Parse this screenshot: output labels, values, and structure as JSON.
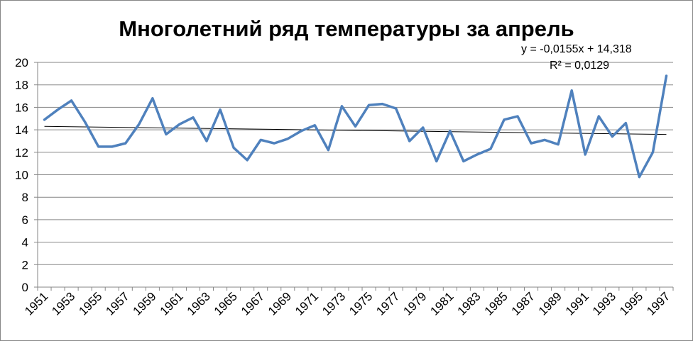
{
  "chart_data": {
    "type": "line",
    "title": "Многолетний ряд температуры за апрель",
    "xlabel": "",
    "ylabel": "",
    "ylim": [
      0,
      20
    ],
    "y_ticks": [
      "0",
      "2",
      "4",
      "6",
      "8",
      "10",
      "12",
      "14",
      "16",
      "18",
      "20"
    ],
    "x_tick_labels": [
      "1951",
      "1953",
      "1955",
      "1957",
      "1959",
      "1961",
      "1963",
      "1965",
      "1967",
      "1969",
      "1971",
      "1973",
      "1975",
      "1977",
      "1979",
      "1981",
      "1983",
      "1985",
      "1987",
      "1989",
      "1991",
      "1993",
      "1995",
      "1997"
    ],
    "grid": "horizontal",
    "legend": "none",
    "x": [
      1951,
      1952,
      1953,
      1954,
      1955,
      1956,
      1957,
      1958,
      1959,
      1960,
      1961,
      1962,
      1963,
      1964,
      1965,
      1966,
      1967,
      1968,
      1969,
      1970,
      1971,
      1972,
      1973,
      1974,
      1975,
      1976,
      1977,
      1978,
      1979,
      1980,
      1981,
      1982,
      1983,
      1984,
      1985,
      1986,
      1987,
      1988,
      1989,
      1990,
      1991,
      1992,
      1993,
      1994,
      1995,
      1996,
      1997
    ],
    "series": [
      {
        "color": "#4f81bd",
        "values": [
          14.9,
          15.8,
          16.6,
          14.7,
          12.5,
          12.5,
          12.8,
          14.5,
          16.8,
          13.6,
          14.5,
          15.1,
          13.0,
          15.8,
          12.4,
          11.3,
          13.1,
          12.8,
          13.2,
          13.9,
          14.4,
          12.2,
          16.1,
          14.3,
          16.2,
          16.3,
          15.9,
          13.0,
          14.2,
          11.2,
          13.9,
          11.2,
          11.8,
          12.3,
          14.9,
          15.2,
          12.8,
          13.1,
          12.7,
          17.5,
          11.8,
          15.2,
          13.4,
          14.6,
          9.8,
          12.0,
          18.8
        ]
      }
    ],
    "trendline": {
      "type": "linear",
      "color": "#000000",
      "slope": -0.0155,
      "intercept": 14.318,
      "equation_label": "y = -0,0155x + 14,318",
      "r2_label": "R² = 0,0129"
    }
  }
}
